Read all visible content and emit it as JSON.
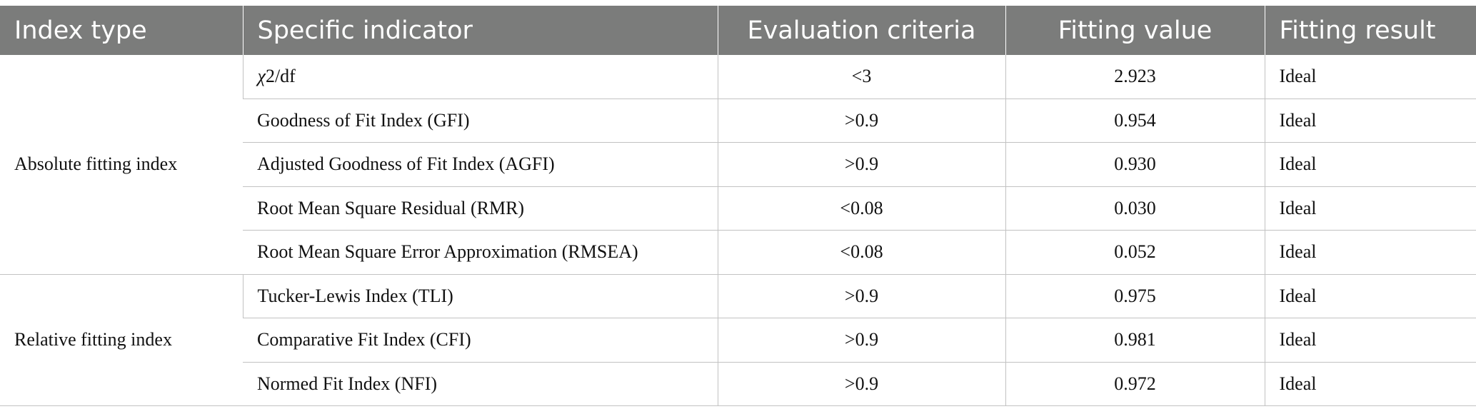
{
  "table": {
    "headers": [
      "Index type",
      "Specific indicator",
      "Evaluation criteria",
      "Fitting value",
      "Fitting result"
    ],
    "groups": [
      {
        "label": "Absolute fitting index",
        "rows": [
          {
            "indicator_symbol": "χ",
            "indicator_rest": "2/df",
            "criteria": "<3",
            "value": "2.923",
            "result": "Ideal"
          },
          {
            "indicator": "Goodness of Fit Index (GFI)",
            "criteria": ">0.9",
            "value": "0.954",
            "result": "Ideal"
          },
          {
            "indicator": "Adjusted Goodness of Fit Index (AGFI)",
            "criteria": ">0.9",
            "value": "0.930",
            "result": "Ideal"
          },
          {
            "indicator": "Root Mean Square Residual (RMR)",
            "criteria": "<0.08",
            "value": "0.030",
            "result": "Ideal"
          },
          {
            "indicator": "Root Mean Square Error Approximation (RMSEA)",
            "criteria": "<0.08",
            "value": "0.052",
            "result": "Ideal"
          }
        ]
      },
      {
        "label": "Relative fitting index",
        "rows": [
          {
            "indicator": "Tucker-Lewis Index (TLI)",
            "criteria": ">0.9",
            "value": "0.975",
            "result": "Ideal"
          },
          {
            "indicator": "Comparative Fit Index (CFI)",
            "criteria": ">0.9",
            "value": "0.981",
            "result": "Ideal"
          },
          {
            "indicator": "Normed Fit Index (NFI)",
            "criteria": ">0.9",
            "value": "0.972",
            "result": "Ideal"
          }
        ]
      }
    ]
  }
}
